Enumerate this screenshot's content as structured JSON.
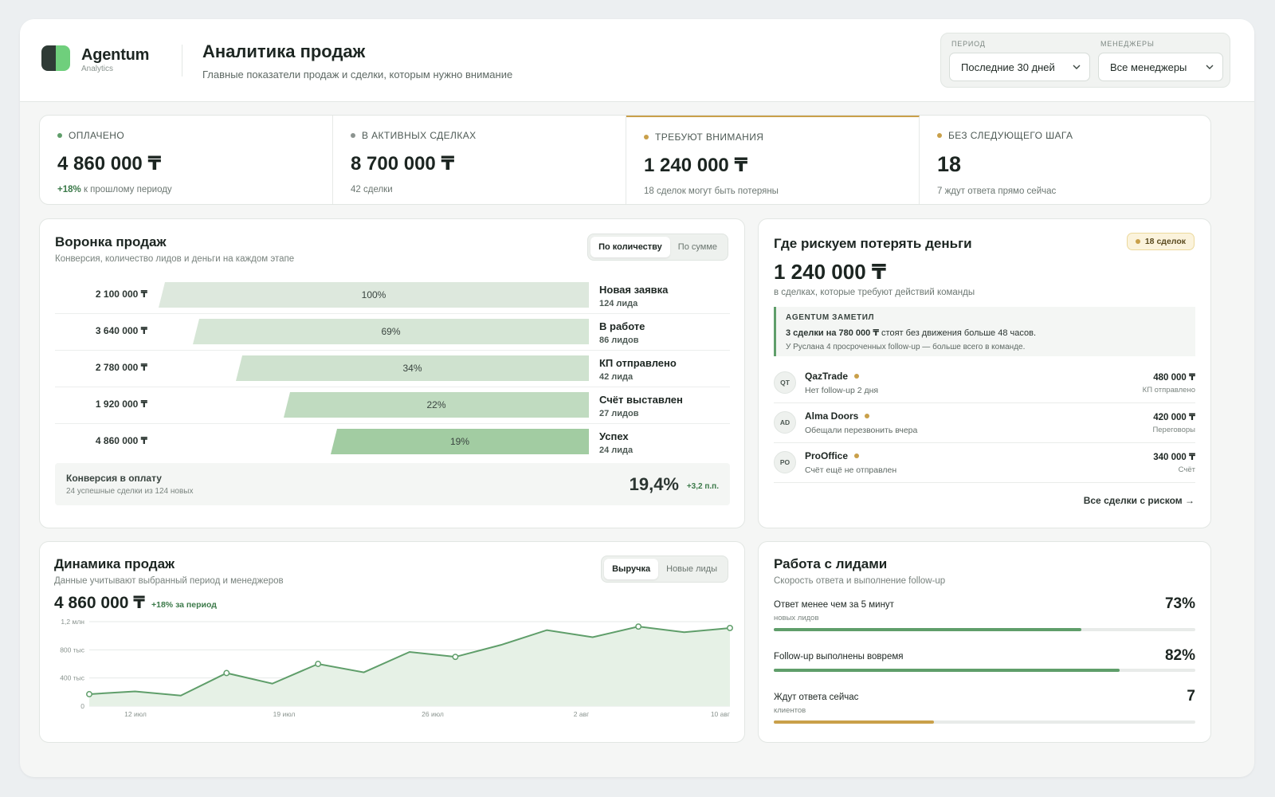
{
  "brand": {
    "name": "Agentum",
    "sub": "Analytics"
  },
  "header": {
    "title": "Аналитика продаж",
    "subtitle": "Главные показатели продаж и сделки, которым нужно внимание"
  },
  "filters": {
    "period_label": "ПЕРИОД",
    "period_value": "Последние 30 дней",
    "managers_label": "МЕНЕДЖЕРЫ",
    "managers_value": "Все менеджеры"
  },
  "kpis": [
    {
      "label": "ОПЛАЧЕНО",
      "value": "4 860 000 ₸",
      "note_prefix": "+18%",
      "note": "к прошлому периоду",
      "dot": "#5f9e6a"
    },
    {
      "label": "В АКТИВНЫХ СДЕЛКАХ",
      "value": "8 700 000 ₸",
      "note_prefix": "",
      "note": "42 сделки",
      "dot": "#8c9490"
    },
    {
      "label": "ТРЕБУЮТ ВНИМАНИЯ",
      "value": "1 240 000 ₸",
      "note_prefix": "",
      "note": "18 сделок могут быть потеряны",
      "dot": "#c9a04a"
    },
    {
      "label": "БЕЗ СЛЕДУЮЩЕГО ШАГА",
      "value": "18",
      "note_prefix": "",
      "note": "7 ждут ответа прямо сейчас",
      "dot": "#c9a04a"
    }
  ],
  "funnel": {
    "title": "Воронка продаж",
    "subtitle": "Конверсия, количество лидов и деньги на каждом этапе",
    "toggle": [
      "По количеству",
      "По сумме"
    ],
    "rows": [
      {
        "money": "2 100 000 ₸",
        "pct_label": "100%",
        "stage": "Новая заявка",
        "count": "124 лида",
        "width": 100,
        "color": "#dde8dd"
      },
      {
        "money": "3 640 000 ₸",
        "pct_label": "69%",
        "stage": "В работе",
        "count": "86 лидов",
        "width": 92,
        "color": "#d6e6d6"
      },
      {
        "money": "2 780 000 ₸",
        "pct_label": "34%",
        "stage": "КП отправлено",
        "count": "42 лида",
        "width": 82,
        "color": "#cfe2cf"
      },
      {
        "money": "1 920 000 ₸",
        "pct_label": "22%",
        "stage": "Счёт выставлен",
        "count": "27 лидов",
        "width": 71,
        "color": "#c0dbc0"
      },
      {
        "money": "4 860 000 ₸",
        "pct_label": "19%",
        "stage": "Успех",
        "count": "24 лида",
        "width": 60,
        "color": "#a2cca2"
      }
    ],
    "conversion": {
      "title": "Конверсия в оплату",
      "subtitle": "24 успешные сделки из 124 новых",
      "value": "19,4%",
      "delta": "+3,2 п.п."
    }
  },
  "risk": {
    "title": "Где рискуем потерять деньги",
    "badge": "18 сделок",
    "total": "1 240 000 ₸",
    "total_sub": "в сделках, которые требуют действий команды",
    "notice": {
      "head": "AGENTUM ЗАМЕТИЛ",
      "line1_bold": "3 сделки на 780 000 ₸",
      "line1_rest": " стоят без движения больше 48 часов.",
      "line2": "У Руслана 4 просроченных follow-up — больше всего в команде."
    },
    "deals": [
      {
        "initials": "QT",
        "name": "QazTrade",
        "note": "Нет follow-up 2 дня",
        "amount": "480 000 ₸",
        "stage": "КП отправлено"
      },
      {
        "initials": "AD",
        "name": "Alma Doors",
        "note": "Обещали перезвонить вчера",
        "amount": "420 000 ₸",
        "stage": "Переговоры"
      },
      {
        "initials": "PO",
        "name": "ProOffice",
        "note": "Счёт ещё не отправлен",
        "amount": "340 000 ₸",
        "stage": "Счёт"
      }
    ],
    "link": "Все сделки с риском →"
  },
  "dynamics": {
    "title": "Динамика продаж",
    "subtitle": "Данные учитывают выбранный период и менеджеров",
    "toggle": [
      "Выручка",
      "Новые лиды"
    ],
    "total": "4 860 000 ₸",
    "delta": "+18% за период"
  },
  "chart_data": {
    "type": "area",
    "y_ticks": [
      "0",
      "400 тыс",
      "800 тыс",
      "1,2 млн"
    ],
    "ylim": [
      0,
      1200000
    ],
    "x_ticks": [
      "12 июл",
      "19 июл",
      "26 июл",
      "2 авг",
      "10 авг"
    ],
    "values": [
      170000,
      210000,
      150000,
      470000,
      320000,
      600000,
      480000,
      770000,
      700000,
      870000,
      1080000,
      980000,
      1130000,
      1050000,
      1110000
    ],
    "markers": [
      0,
      3,
      5,
      8,
      12,
      14
    ],
    "grid": true,
    "color": "#5f9e6a"
  },
  "leads": {
    "title": "Работа с лидами",
    "subtitle": "Скорость ответа и выполнение follow-up",
    "metrics": [
      {
        "title": "Ответ менее чем за 5 минут",
        "sub": "новых лидов",
        "value": "73%",
        "fill": 73,
        "color": "#5f9e6a"
      },
      {
        "title": "Follow-up выполнены вовремя",
        "sub": "",
        "value": "82%",
        "fill": 82,
        "color": "#5f9e6a"
      },
      {
        "title": "Ждут ответа сейчас",
        "sub": "клиентов",
        "value": "7",
        "fill": 38,
        "color": "#c9a04a"
      }
    ]
  }
}
